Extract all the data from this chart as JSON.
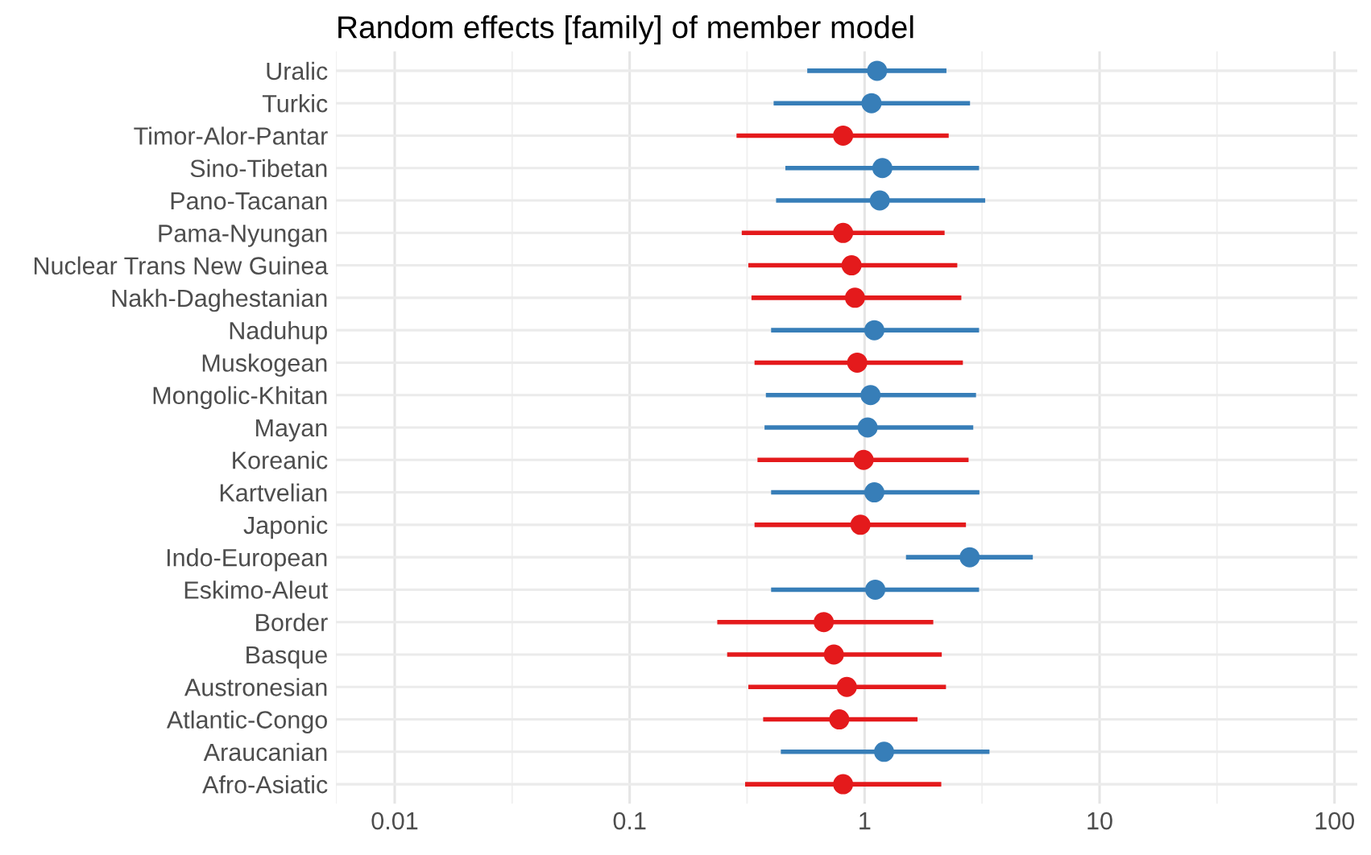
{
  "chart_data": {
    "type": "scatter",
    "title": "Random effects [family] of member model",
    "orientation": "horizontal",
    "log": "x",
    "grid": true,
    "marker": "circle",
    "categories": [
      "Uralic",
      "Turkic",
      "Timor-Alor-Pantar",
      "Sino-Tibetan",
      "Pano-Tacanan",
      "Pama-Nyungan",
      "Nuclear Trans New Guinea",
      "Nakh-Daghestanian",
      "Naduhup",
      "Muskogean",
      "Mongolic-Khitan",
      "Mayan",
      "Koreanic",
      "Kartvelian",
      "Japonic",
      "Indo-European",
      "Eskimo-Aleut",
      "Border",
      "Basque",
      "Austronesian",
      "Atlantic-Congo",
      "Araucanian",
      "Afro-Asiatic"
    ],
    "values": [
      1.13,
      1.07,
      0.81,
      1.19,
      1.16,
      0.81,
      0.88,
      0.91,
      1.1,
      0.93,
      1.06,
      1.03,
      0.99,
      1.1,
      0.96,
      2.8,
      1.11,
      0.67,
      0.74,
      0.84,
      0.78,
      1.21,
      0.81
    ],
    "errors": [
      [
        0.57,
        2.23
      ],
      [
        0.41,
        2.81
      ],
      [
        0.285,
        2.28
      ],
      [
        0.46,
        3.07
      ],
      [
        0.42,
        3.26
      ],
      [
        0.3,
        2.19
      ],
      [
        0.32,
        2.48
      ],
      [
        0.33,
        2.58
      ],
      [
        0.4,
        3.07
      ],
      [
        0.34,
        2.62
      ],
      [
        0.38,
        2.98
      ],
      [
        0.375,
        2.9
      ],
      [
        0.35,
        2.77
      ],
      [
        0.4,
        3.08
      ],
      [
        0.34,
        2.7
      ],
      [
        1.5,
        5.2
      ],
      [
        0.4,
        3.07
      ],
      [
        0.236,
        1.96
      ],
      [
        0.26,
        2.13
      ],
      [
        0.32,
        2.22
      ],
      [
        0.37,
        1.68
      ],
      [
        0.44,
        3.4
      ],
      [
        0.31,
        2.12
      ]
    ],
    "colors": [
      "#377eb8",
      "#377eb8",
      "#e41a1c",
      "#377eb8",
      "#377eb8",
      "#e41a1c",
      "#e41a1c",
      "#e41a1c",
      "#377eb8",
      "#e41a1c",
      "#377eb8",
      "#377eb8",
      "#e41a1c",
      "#377eb8",
      "#e41a1c",
      "#377eb8",
      "#377eb8",
      "#e41a1c",
      "#e41a1c",
      "#e41a1c",
      "#e41a1c",
      "#377eb8",
      "#e41a1c"
    ],
    "xlim": [
      0.00562,
      125
    ],
    "xticks": [
      {
        "value": 0.00562,
        "label": null
      },
      0.01,
      {
        "value": 0.0316,
        "label": null
      },
      0.1,
      {
        "value": 0.316,
        "label": null
      },
      1,
      {
        "value": 3.16,
        "label": null
      },
      10,
      {
        "value": 31.6,
        "label": null
      },
      100
    ]
  }
}
